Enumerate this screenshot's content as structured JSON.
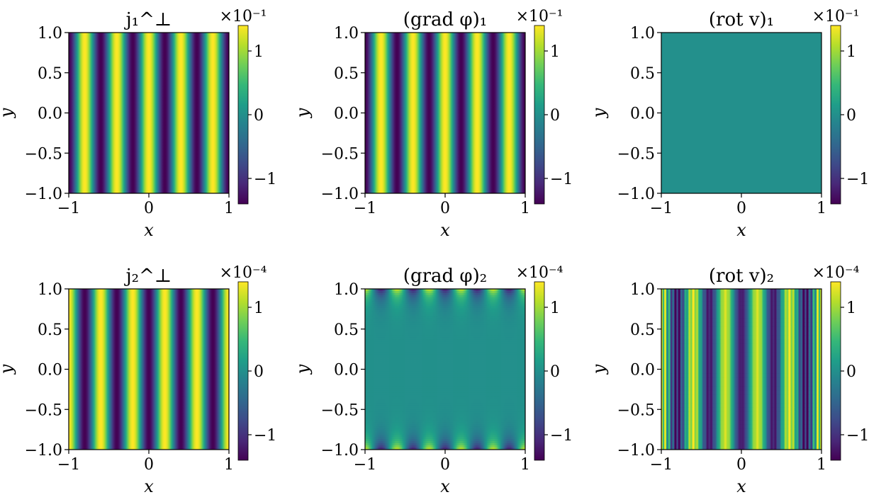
{
  "chart_data": [
    {
      "type": "heatmap",
      "title": "j₁^⊥",
      "xlabel": "x",
      "ylabel": "y",
      "xlim": [
        -1,
        1
      ],
      "ylim": [
        -1,
        1
      ],
      "xticks": [
        "−1",
        "0",
        "1"
      ],
      "yticks": [
        "1.0",
        "0.5",
        "0.0",
        "−0.5",
        "−1.0"
      ],
      "colorbar": {
        "ticks": [
          "1",
          "0",
          "−1"
        ],
        "multiplier": "×10⁻¹",
        "range": [
          -1.4,
          1.4
        ]
      },
      "field": {
        "pattern": "cosine-stripes",
        "peaks_per_width": 5,
        "phase": "start-low"
      }
    },
    {
      "type": "heatmap",
      "title": "(grad φ)₁",
      "xlabel": "x",
      "ylabel": "y",
      "xlim": [
        -1,
        1
      ],
      "ylim": [
        -1,
        1
      ],
      "xticks": [
        "−1",
        "0",
        "1"
      ],
      "yticks": [
        "1.0",
        "0.5",
        "0.0",
        "−0.5",
        "−1.0"
      ],
      "colorbar": {
        "ticks": [
          "1",
          "0",
          "−1"
        ],
        "multiplier": "×10⁻¹",
        "range": [
          -1.4,
          1.4
        ]
      },
      "field": {
        "pattern": "cosine-stripes",
        "peaks_per_width": 5,
        "phase": "start-low"
      }
    },
    {
      "type": "heatmap",
      "title": "(rot v)₁",
      "xlabel": "x",
      "ylabel": "y",
      "xlim": [
        -1,
        1
      ],
      "ylim": [
        -1,
        1
      ],
      "xticks": [
        "−1",
        "0",
        "1"
      ],
      "yticks": [
        "1.0",
        "0.5",
        "0.0",
        "−0.5",
        "−1.0"
      ],
      "colorbar": {
        "ticks": [
          "1",
          "0",
          "−1"
        ],
        "multiplier": "×10⁻¹",
        "range": [
          -1.4,
          1.4
        ]
      },
      "field": {
        "pattern": "uniform",
        "value": 0
      }
    },
    {
      "type": "heatmap",
      "title": "j₂^⊥",
      "xlabel": "x",
      "ylabel": "y",
      "xlim": [
        -1,
        1
      ],
      "ylim": [
        -1,
        1
      ],
      "xticks": [
        "−1",
        "0",
        "1"
      ],
      "yticks": [
        "1.0",
        "0.5",
        "0.0",
        "−0.5",
        "−1.0"
      ],
      "colorbar": {
        "ticks": [
          "1",
          "0",
          "−1"
        ],
        "multiplier": "×10⁻⁴",
        "range": [
          -1.4,
          1.4
        ]
      },
      "field": {
        "pattern": "cosine-stripes",
        "peaks_per_width": 5,
        "phase": "start-high"
      }
    },
    {
      "type": "heatmap",
      "title": "(grad φ)₂",
      "xlabel": "x",
      "ylabel": "y",
      "xlim": [
        -1,
        1
      ],
      "ylim": [
        -1,
        1
      ],
      "xticks": [
        "−1",
        "0",
        "1"
      ],
      "yticks": [
        "1.0",
        "0.5",
        "0.0",
        "−0.5",
        "−1.0"
      ],
      "colorbar": {
        "ticks": [
          "1",
          "0",
          "−1"
        ],
        "multiplier": "×10⁻⁴",
        "range": [
          -1.4,
          1.4
        ]
      },
      "field": {
        "pattern": "edge-modulated",
        "peaks_per_width": 5,
        "edge_value": 1.2,
        "decay": 0.06
      }
    },
    {
      "type": "heatmap",
      "title": "(rot v)₂",
      "xlabel": "x",
      "ylabel": "y",
      "xlim": [
        -1,
        1
      ],
      "ylim": [
        -1,
        1
      ],
      "xticks": [
        "−1",
        "0",
        "1"
      ],
      "yticks": [
        "1.0",
        "0.5",
        "0.0",
        "−0.5",
        "−1.0"
      ],
      "colorbar": {
        "ticks": [
          "1",
          "0",
          "−1"
        ],
        "multiplier": "×10⁻⁴",
        "range": [
          -1.4,
          1.4
        ]
      },
      "field": {
        "pattern": "stripes-with-edge-ripples",
        "peaks_per_width": 5,
        "phase": "start-high",
        "ripple_frequency": 40
      }
    }
  ]
}
